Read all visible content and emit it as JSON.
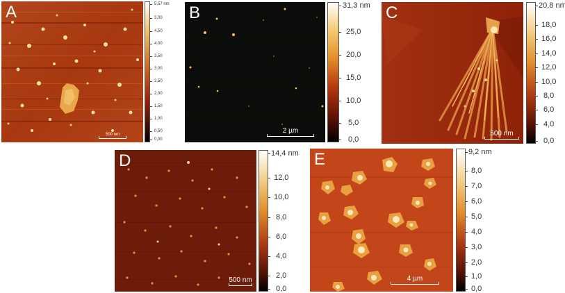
{
  "panels": [
    {
      "letter": "A",
      "scale_bar": "500 nm",
      "colorbar": {
        "labels": [
          "5,57 nm",
          "5,00",
          "4,50",
          "4,00",
          "3,50",
          "3,00",
          "2,50",
          "2,00",
          "1,50",
          "1,00",
          "0,50",
          "0,00"
        ]
      }
    },
    {
      "letter": "B",
      "scale_bar": "2 µm",
      "colorbar": {
        "labels": [
          "31,3 nm",
          "25,0",
          "20,0",
          "15,0",
          "10,0",
          "5,0",
          "0,0"
        ]
      }
    },
    {
      "letter": "C",
      "scale_bar": "500 nm",
      "colorbar": {
        "labels": [
          "20,8 nm",
          "18,0",
          "16,0",
          "14,0",
          "12,0",
          "10,0",
          "8,0",
          "6,0",
          "4,0",
          "0,0"
        ]
      }
    },
    {
      "letter": "D",
      "scale_bar": "500 nm",
      "colorbar": {
        "labels": [
          "14,4 nm",
          "12,0",
          "10,0",
          "8,0",
          "6,0",
          "4,0",
          "2,0",
          "0,0"
        ]
      }
    },
    {
      "letter": "E",
      "scale_bar": "4 µm",
      "colorbar": {
        "labels": [
          "9,2 nm",
          "8,0",
          "7,0",
          "6,0",
          "5,0",
          "4,0",
          "3,0",
          "2,0",
          "1,0",
          "0,0"
        ]
      }
    }
  ],
  "colors": {
    "afm_dark": "#000000",
    "afm_mid": "#b03010",
    "afm_high": "#f0b040",
    "afm_top": "#ffffff"
  }
}
